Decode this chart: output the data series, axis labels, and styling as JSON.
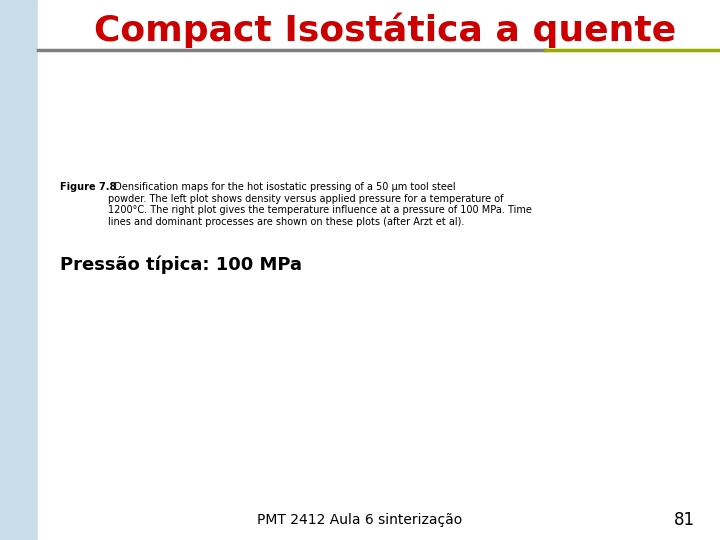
{
  "title": "Compact Isostática a quente",
  "title_color": "#cc0000",
  "title_fontsize": 26,
  "background_color": "#ffffff",
  "slide_bg_color": "#c8dde8",
  "separator_color_left": "#808080",
  "separator_color_right": "#99aa00",
  "figure_caption_bold": "Figure 7.8",
  "figure_caption_rest": "  Densification maps for the hot isostatic pressing of a 50 μm tool steel\npowder. The left plot shows density versus applied pressure for a temperature of\n1200°C. The right plot gives the temperature influence at a pressure of 100 MPa. Time\nlines and dominant processes are shown on these plots (after Arzt et al).",
  "pressao_text": "Pressão típica: 100 MPa",
  "pressao_fontsize": 13,
  "footer_text": "PMT 2412 Aula 6 sinterização",
  "footer_fontsize": 10,
  "page_number": "81",
  "page_number_fontsize": 12
}
